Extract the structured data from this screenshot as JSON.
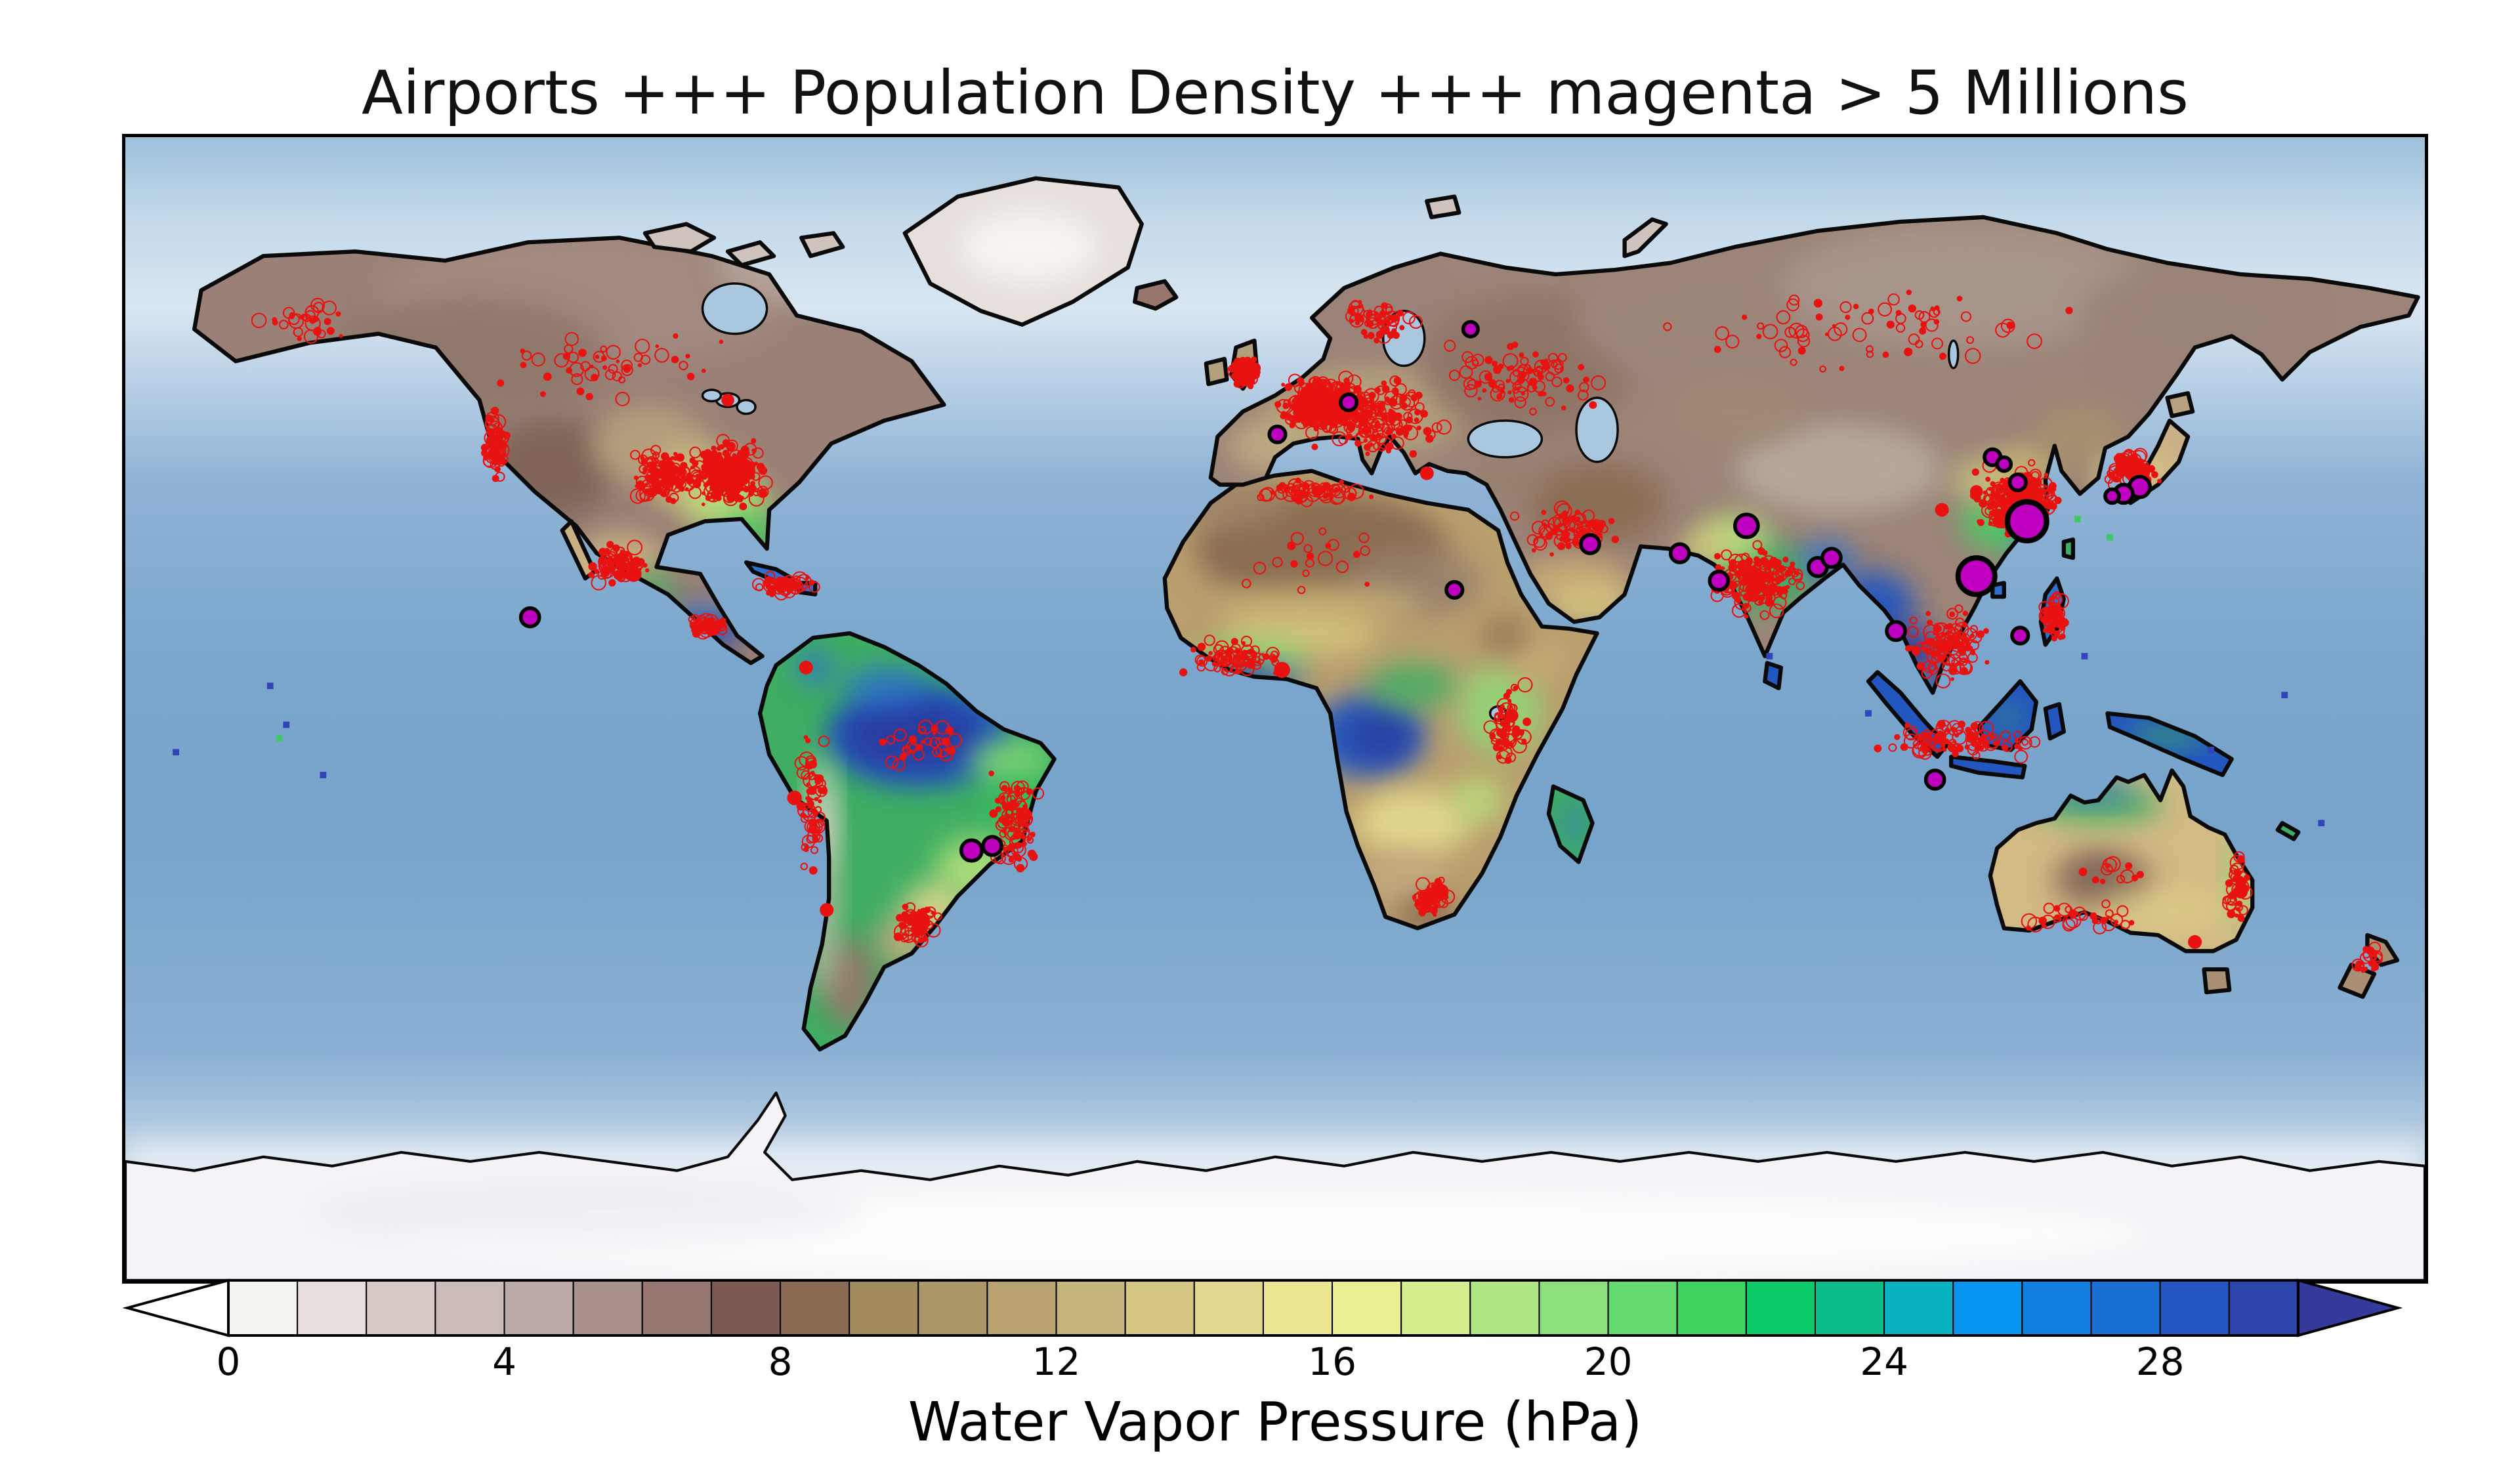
{
  "title": "Airports +++ Population Density +++ magenta > 5 Millions",
  "colorbar": {
    "label": "Water Vapor Pressure (hPa)",
    "ticks": [
      0,
      4,
      8,
      12,
      16,
      20,
      24,
      28
    ],
    "value_min": 0,
    "value_max": 30,
    "cell_colors": [
      "#f5f3f0",
      "#e8dfdd",
      "#d6c9c6",
      "#cabbb8",
      "#bcaaa6",
      "#aa908b",
      "#977771",
      "#7d5a51",
      "#8a6a52",
      "#a18a5e",
      "#ab9668",
      "#b9a371",
      "#c7b67c",
      "#d5c684",
      "#e2d78c",
      "#ece592",
      "#e9f094",
      "#d4ee8e",
      "#afe883",
      "#8be07a",
      "#64d96d",
      "#3ed45f",
      "#0cc96a",
      "#0cbd8c",
      "#08b2c0",
      "#0795f0",
      "#127fe0",
      "#1a6fd4",
      "#2457c2",
      "#2c46ad"
    ],
    "left_arrow_color": "#ffffff",
    "right_arrow_color": "#333a99",
    "outline_color": "#000000"
  },
  "map": {
    "ocean_color_mid": "#78a4cb",
    "ocean_color_polar": "#d8e6f2",
    "ice_color": "#f4f4f8",
    "coastline_color": "#0a0a0a",
    "airport_color": "#e81310",
    "city_marker_color": "#c000c0",
    "city_marker_edge": "#000000",
    "big_cities": [
      [
        827,
        168,
        8.5
      ],
      [
        805,
        192,
        8
      ],
      [
        812,
        140,
        3.5
      ],
      [
        817,
        143,
        3
      ],
      [
        823,
        151,
        3.5
      ],
      [
        876,
        153,
        4.5
      ],
      [
        869,
        156,
        4
      ],
      [
        864,
        157,
        3
      ],
      [
        705,
        170,
        5
      ],
      [
        676,
        182,
        4
      ],
      [
        693,
        194,
        4
      ],
      [
        736,
        188,
        4
      ],
      [
        742,
        184,
        4
      ],
      [
        770,
        216,
        4
      ],
      [
        787,
        281,
        4
      ],
      [
        824,
        218,
        3.5
      ],
      [
        637,
        178,
        4
      ],
      [
        585,
        84,
        3.2
      ],
      [
        501,
        130,
        3.5
      ],
      [
        532,
        116,
        3.5
      ],
      [
        176,
        210,
        4
      ],
      [
        368,
        312,
        4.5
      ],
      [
        377,
        310,
        4
      ],
      [
        578,
        198,
        3.5
      ]
    ],
    "red_metros": [
      [
        270,
        146,
        4
      ],
      [
        255,
        141,
        3.2
      ],
      [
        346,
        343,
        4
      ],
      [
        221,
        191,
        3.5
      ],
      [
        296,
        232,
        3
      ],
      [
        291,
        289,
        3.2
      ],
      [
        305,
        338,
        3
      ],
      [
        503,
        233,
        3.5
      ],
      [
        572,
        330,
        3.5
      ],
      [
        603,
        253,
        2.8
      ],
      [
        815,
        168,
        3
      ],
      [
        790,
        163,
        3
      ],
      [
        805,
        155,
        2.8
      ],
      [
        566,
        147,
        3
      ],
      [
        920,
        330,
        3
      ],
      [
        900,
        352,
        3
      ],
      [
        262,
        115,
        2.8
      ]
    ],
    "blue_squares": [
      [
        63,
        240
      ],
      [
        70,
        257
      ],
      [
        22,
        269
      ],
      [
        86,
        279
      ],
      [
        939,
        244
      ],
      [
        715,
        227
      ],
      [
        852,
        227
      ],
      [
        758,
        252
      ],
      [
        907,
        268
      ],
      [
        955,
        300
      ]
    ],
    "green_squares": [
      [
        863,
        175
      ],
      [
        849,
        167
      ],
      [
        67,
        263
      ]
    ],
    "airport_clusters": [
      [
        487,
        103,
        7,
        7,
        130,
        0.3
      ],
      [
        521,
        117,
        22,
        13,
        420,
        0.3
      ],
      [
        540,
        122,
        40,
        22,
        220,
        0.55
      ],
      [
        545,
        80,
        18,
        12,
        60,
        0.5
      ],
      [
        610,
        105,
        40,
        20,
        90,
        0.55
      ],
      [
        760,
        85,
        110,
        22,
        70,
        0.55
      ],
      [
        262,
        147,
        20,
        17,
        330,
        0.3
      ],
      [
        233,
        148,
        16,
        13,
        130,
        0.4
      ],
      [
        161,
        135,
        6,
        17,
        90,
        0.35
      ],
      [
        210,
        100,
        55,
        18,
        50,
        0.55
      ],
      [
        75,
        80,
        25,
        10,
        30,
        0.5
      ],
      [
        215,
        187,
        16,
        11,
        80,
        0.45
      ],
      [
        287,
        196,
        17,
        6,
        60,
        0.45
      ],
      [
        253,
        213,
        12,
        6,
        50,
        0.4
      ],
      [
        387,
        300,
        13,
        26,
        110,
        0.45
      ],
      [
        345,
        265,
        28,
        14,
        30,
        0.55
      ],
      [
        299,
        290,
        7,
        38,
        70,
        0.45
      ],
      [
        344,
        344,
        13,
        13,
        55,
        0.5
      ],
      [
        484,
        228,
        26,
        9,
        80,
        0.5
      ],
      [
        512,
        155,
        38,
        6,
        60,
        0.55
      ],
      [
        601,
        257,
        10,
        24,
        60,
        0.55
      ],
      [
        567,
        333,
        11,
        9,
        60,
        0.5
      ],
      [
        627,
        172,
        26,
        14,
        80,
        0.55
      ],
      [
        709,
        194,
        24,
        19,
        190,
        0.5
      ],
      [
        822,
        158,
        22,
        17,
        240,
        0.4
      ],
      [
        872,
        145,
        14,
        9,
        110,
        0.35
      ],
      [
        793,
        222,
        22,
        18,
        110,
        0.5
      ],
      [
        797,
        264,
        42,
        9,
        100,
        0.45
      ],
      [
        838,
        210,
        7,
        12,
        60,
        0.45
      ],
      [
        919,
        329,
        7,
        20,
        45,
        0.45
      ],
      [
        852,
        341,
        30,
        9,
        35,
        0.5
      ],
      [
        975,
        360,
        10,
        10,
        20,
        0.45
      ],
      [
        520,
        185,
        40,
        18,
        20,
        0.6
      ],
      [
        862,
        322,
        18,
        10,
        12,
        0.6
      ]
    ]
  },
  "chart_data": {
    "type": "heatmap",
    "title": "Airports +++ Population Density +++ magenta > 5 Millions",
    "colorbar_label": "Water Vapor Pressure (hPa)",
    "colorbar_ticks": [
      0,
      4,
      8,
      12,
      16,
      20,
      24,
      28
    ],
    "value_range": [
      0,
      30
    ],
    "legend": "red markers = airports / population density, magenta filled circles = cities above 5 million inhabitants"
  }
}
